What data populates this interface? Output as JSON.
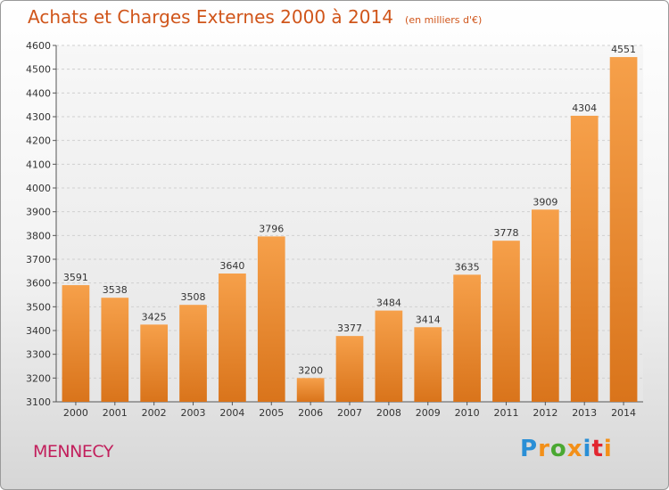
{
  "title": "Achats et Charges Externes 2000 à 2014",
  "subtitle": "(en milliers d'€)",
  "city": "MENNECY",
  "logo": {
    "letters": [
      "P",
      "r",
      "o",
      "x",
      "i",
      "t",
      "i"
    ],
    "colors": [
      "#2a8fd6",
      "#f39019",
      "#4aa832",
      "#f39019",
      "#2a8fd6",
      "#e2262f",
      "#f39019"
    ]
  },
  "colors": {
    "bar_top": "#f6a04a",
    "bar_bottom": "#d9741b",
    "title": "#d0551a",
    "city": "#c21f5c"
  },
  "chart_data": {
    "type": "bar",
    "categories": [
      "2000",
      "2001",
      "2002",
      "2003",
      "2004",
      "2005",
      "2006",
      "2007",
      "2008",
      "2009",
      "2010",
      "2011",
      "2012",
      "2013",
      "2014"
    ],
    "values": [
      3591,
      3538,
      3425,
      3508,
      3640,
      3796,
      3200,
      3377,
      3484,
      3414,
      3635,
      3778,
      3909,
      4304,
      4551
    ],
    "ylim": [
      3100,
      4600
    ],
    "yticks": [
      3100,
      3200,
      3300,
      3400,
      3500,
      3600,
      3700,
      3800,
      3900,
      4000,
      4100,
      4200,
      4300,
      4400,
      4500,
      4600
    ],
    "grid": true,
    "data_labels": true
  }
}
